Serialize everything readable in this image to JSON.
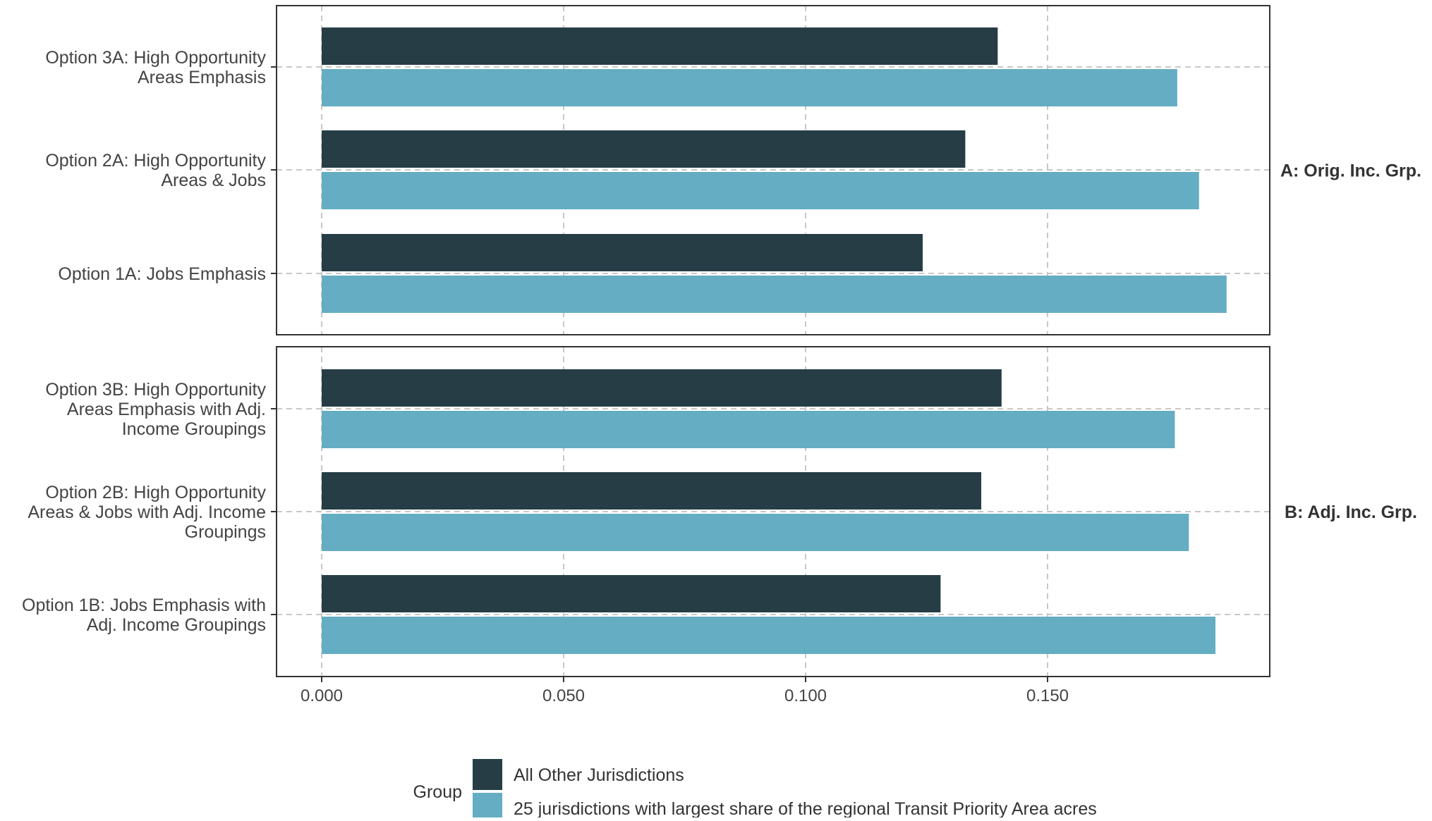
{
  "chart_data": {
    "type": "bar",
    "orientation": "horizontal",
    "xlim": [
      0,
      0.2
    ],
    "x_ticks": [
      "0.000",
      "0.050",
      "0.100",
      "0.150"
    ],
    "x_tick_values": [
      0,
      0.05,
      0.1,
      0.15
    ],
    "grid": true,
    "legend": {
      "title": "Group",
      "position": "bottom",
      "items": [
        {
          "label": "All Other Jurisdictions",
          "color": "#263d46"
        },
        {
          "label": "25 jurisdictions with largest share of the regional Transit Priority Area acres",
          "color": "#64adc3"
        }
      ]
    },
    "panels": [
      {
        "strip_label": "A: Orig. Inc. Grp.",
        "categories": [
          {
            "label_lines": [
              "Option 3A: High Opportunity",
              "Areas Emphasis"
            ],
            "values": [
              0.1397,
              0.1768
            ]
          },
          {
            "label_lines": [
              "Option 2A: High Opportunity",
              "Areas & Jobs"
            ],
            "values": [
              0.133,
              0.1813
            ]
          },
          {
            "label_lines": [
              "Option 1A: Jobs Emphasis"
            ],
            "values": [
              0.1242,
              0.187
            ]
          }
        ]
      },
      {
        "strip_label": "B: Adj. Inc. Grp.",
        "categories": [
          {
            "label_lines": [
              "Option 3B: High Opportunity",
              "Areas Emphasis with Adj.",
              "Income Groupings"
            ],
            "values": [
              0.1405,
              0.1763
            ]
          },
          {
            "label_lines": [
              "Option 2B: High Opportunity",
              "Areas & Jobs with Adj. Income",
              "Groupings"
            ],
            "values": [
              0.1363,
              0.1792
            ]
          },
          {
            "label_lines": [
              "Option 1B: Jobs Emphasis with",
              "Adj. Income Groupings"
            ],
            "values": [
              0.1279,
              0.1847
            ]
          }
        ]
      }
    ]
  }
}
